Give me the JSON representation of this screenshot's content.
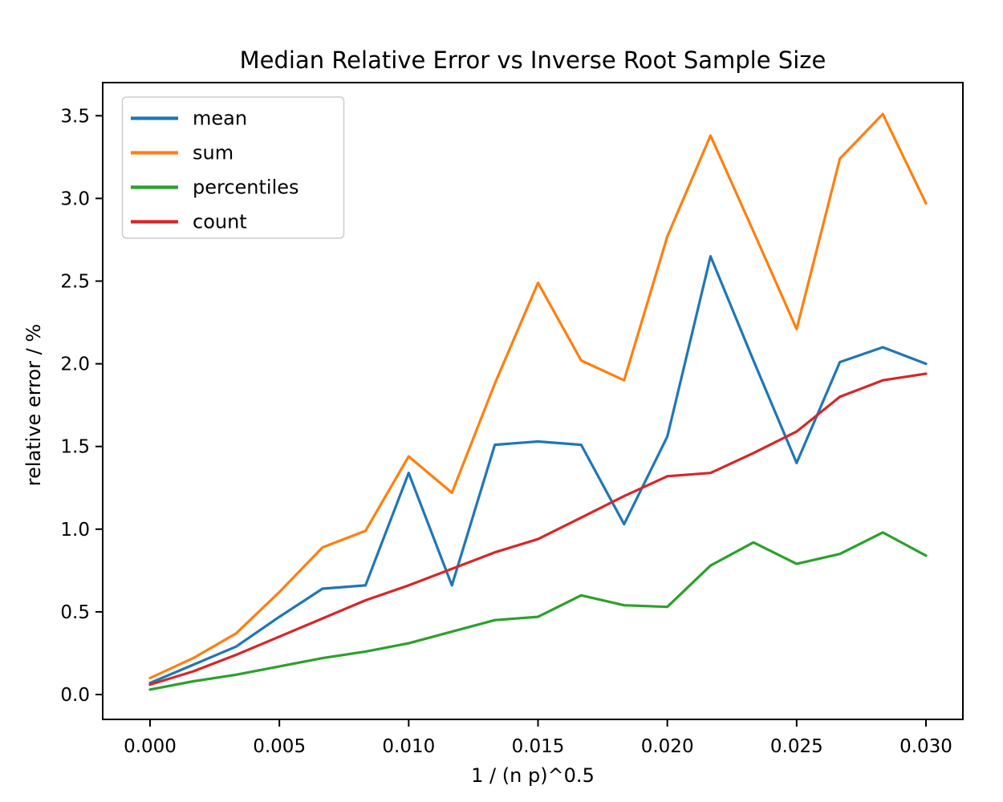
{
  "figure": {
    "title": "Median Relative Error vs Inverse Root Sample Size",
    "xlabel": "1 / (n p)^0.5",
    "ylabel": "relative error / %",
    "background_color": "#ffffff",
    "spine_color": "#000000"
  },
  "chart_data": {
    "type": "line",
    "title": "Median Relative Error vs Inverse Root Sample Size",
    "xlabel": "1 / (n p)^0.5",
    "ylabel": "relative error / %",
    "grid": false,
    "legend_position": "upper left",
    "xlim": [
      -0.0018,
      0.0314
    ],
    "ylim": [
      -0.15,
      3.7
    ],
    "x_ticks": [
      0.0,
      0.005,
      0.01,
      0.015,
      0.02,
      0.025,
      0.03
    ],
    "x_tick_labels": [
      "0.000",
      "0.005",
      "0.010",
      "0.015",
      "0.020",
      "0.025",
      "0.030"
    ],
    "y_ticks": [
      0.0,
      0.5,
      1.0,
      1.5,
      2.0,
      2.5,
      3.0,
      3.5
    ],
    "y_tick_labels": [
      "0.0",
      "0.5",
      "1.0",
      "1.5",
      "2.0",
      "2.5",
      "3.0",
      "3.5"
    ],
    "x": [
      0.0,
      0.00167,
      0.00333,
      0.005,
      0.00667,
      0.00833,
      0.01,
      0.01167,
      0.01333,
      0.015,
      0.01667,
      0.01833,
      0.02,
      0.02167,
      0.02333,
      0.025,
      0.02667,
      0.02833,
      0.03
    ],
    "series": [
      {
        "name": "mean",
        "color": "#1f77b4",
        "values": [
          0.07,
          0.18,
          0.29,
          0.47,
          0.64,
          0.66,
          1.34,
          0.66,
          1.51,
          1.53,
          1.51,
          1.03,
          1.56,
          2.65,
          2.02,
          1.4,
          2.01,
          2.1,
          2.0
        ]
      },
      {
        "name": "sum",
        "color": "#ff7f0e",
        "values": [
          0.1,
          0.22,
          0.37,
          0.62,
          0.89,
          0.99,
          1.44,
          1.22,
          1.88,
          2.49,
          2.02,
          1.9,
          2.77,
          3.38,
          2.8,
          2.21,
          3.24,
          3.51,
          2.97
        ]
      },
      {
        "name": "percentiles",
        "color": "#2ca02c",
        "values": [
          0.03,
          0.08,
          0.12,
          0.17,
          0.22,
          0.26,
          0.31,
          0.38,
          0.45,
          0.47,
          0.6,
          0.54,
          0.53,
          0.78,
          0.92,
          0.79,
          0.85,
          0.98,
          0.84
        ]
      },
      {
        "name": "count",
        "color": "#d62728",
        "values": [
          0.06,
          0.14,
          0.24,
          0.35,
          0.46,
          0.57,
          0.66,
          0.76,
          0.86,
          0.94,
          1.07,
          1.2,
          1.32,
          1.34,
          1.46,
          1.59,
          1.8,
          1.9,
          1.94
        ]
      }
    ]
  }
}
